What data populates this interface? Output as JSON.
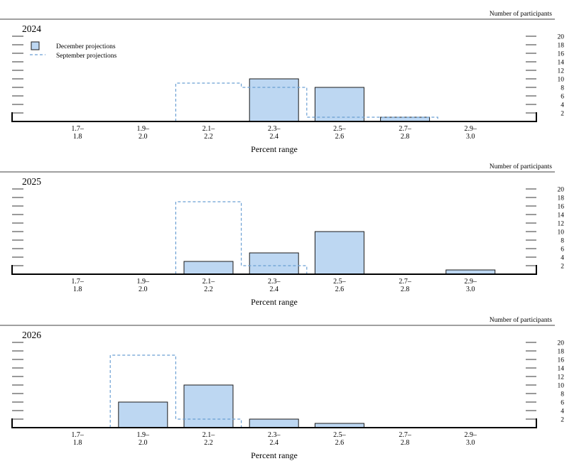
{
  "legend": {
    "december_label": "December projections",
    "september_label": "September projections"
  },
  "colors": {
    "december_fill": "#bdd7f2",
    "december_stroke": "#1a1a1a",
    "september_stroke": "#6a9fd3",
    "axis": "#000000"
  },
  "chart_data": [
    {
      "type": "bar",
      "title": "2024",
      "xlabel": "Percent range",
      "ylabel": "Number of participants",
      "categories": [
        "1.7–\n1.8",
        "1.9–\n2.0",
        "2.1–\n2.2",
        "2.3–\n2.4",
        "2.5–\n2.6",
        "2.7–\n2.8",
        "2.9–\n3.0"
      ],
      "y_ticks": [
        2,
        4,
        6,
        8,
        10,
        12,
        14,
        16,
        18,
        20
      ],
      "ylim": [
        0,
        20
      ],
      "legend_position": "top-left",
      "series": [
        {
          "name": "December projections",
          "style": "bar",
          "values": [
            0,
            0,
            0,
            10,
            8,
            1,
            0
          ]
        },
        {
          "name": "September projections",
          "style": "dashed-step",
          "values": [
            0,
            0,
            9,
            8,
            1,
            1,
            0
          ]
        }
      ]
    },
    {
      "type": "bar",
      "title": "2025",
      "xlabel": "Percent range",
      "ylabel": "Number of participants",
      "categories": [
        "1.7–\n1.8",
        "1.9–\n2.0",
        "2.1–\n2.2",
        "2.3–\n2.4",
        "2.5–\n2.6",
        "2.7–\n2.8",
        "2.9–\n3.0"
      ],
      "y_ticks": [
        2,
        4,
        6,
        8,
        10,
        12,
        14,
        16,
        18,
        20
      ],
      "ylim": [
        0,
        20
      ],
      "series": [
        {
          "name": "December projections",
          "style": "bar",
          "values": [
            0,
            0,
            3,
            5,
            10,
            0,
            1
          ]
        },
        {
          "name": "September projections",
          "style": "dashed-step",
          "values": [
            0,
            0,
            17,
            2,
            0,
            0,
            0
          ]
        }
      ]
    },
    {
      "type": "bar",
      "title": "2026",
      "xlabel": "Percent range",
      "ylabel": "Number of participants",
      "categories": [
        "1.7–\n1.8",
        "1.9–\n2.0",
        "2.1–\n2.2",
        "2.3–\n2.4",
        "2.5–\n2.6",
        "2.7–\n2.8",
        "2.9–\n3.0"
      ],
      "y_ticks": [
        2,
        4,
        6,
        8,
        10,
        12,
        14,
        16,
        18,
        20
      ],
      "ylim": [
        0,
        20
      ],
      "series": [
        {
          "name": "December projections",
          "style": "bar",
          "values": [
            0,
            6,
            10,
            2,
            1,
            0,
            0
          ]
        },
        {
          "name": "September projections",
          "style": "dashed-step",
          "values": [
            0,
            17,
            2,
            0,
            0,
            0,
            0
          ]
        }
      ]
    }
  ]
}
